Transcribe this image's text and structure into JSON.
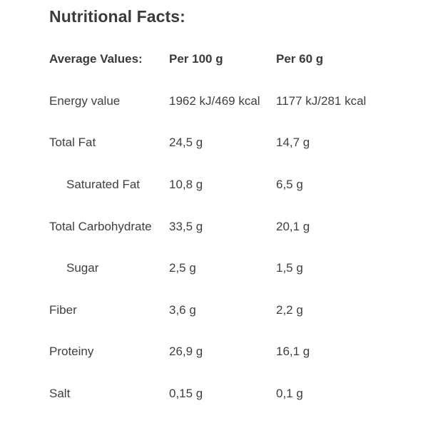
{
  "title": "Nutritional Facts:",
  "headers": {
    "label": "Average Values:",
    "per100": "Per 100 g",
    "per60": "Per 60 g"
  },
  "rows": [
    {
      "name": "Energy value",
      "per100": "1962 kJ/469 kcal",
      "per60": "1177 kJ/281 kcal"
    },
    {
      "name": "Total Fat",
      "per100": "24,5 g",
      "per60": "14,7 g"
    },
    {
      "name": "Saturated Fat",
      "per100": "10,8 g",
      "per60": "6,5 g"
    },
    {
      "name": "Total Carbohydrate",
      "per100": "33,5 g",
      "per60": "20,1 g"
    },
    {
      "name": "Sugar",
      "per100": "2,5 g",
      "per60": "1,5 g"
    },
    {
      "name": "Fiber",
      "per100": "3,6 g",
      "per60": "2,2 g"
    },
    {
      "name": "Proteiny",
      "per100": "26,9 g",
      "per60": "16,1 g"
    },
    {
      "name": "Salt",
      "per100": "0,15 g",
      "per60": "0,1 g"
    }
  ]
}
